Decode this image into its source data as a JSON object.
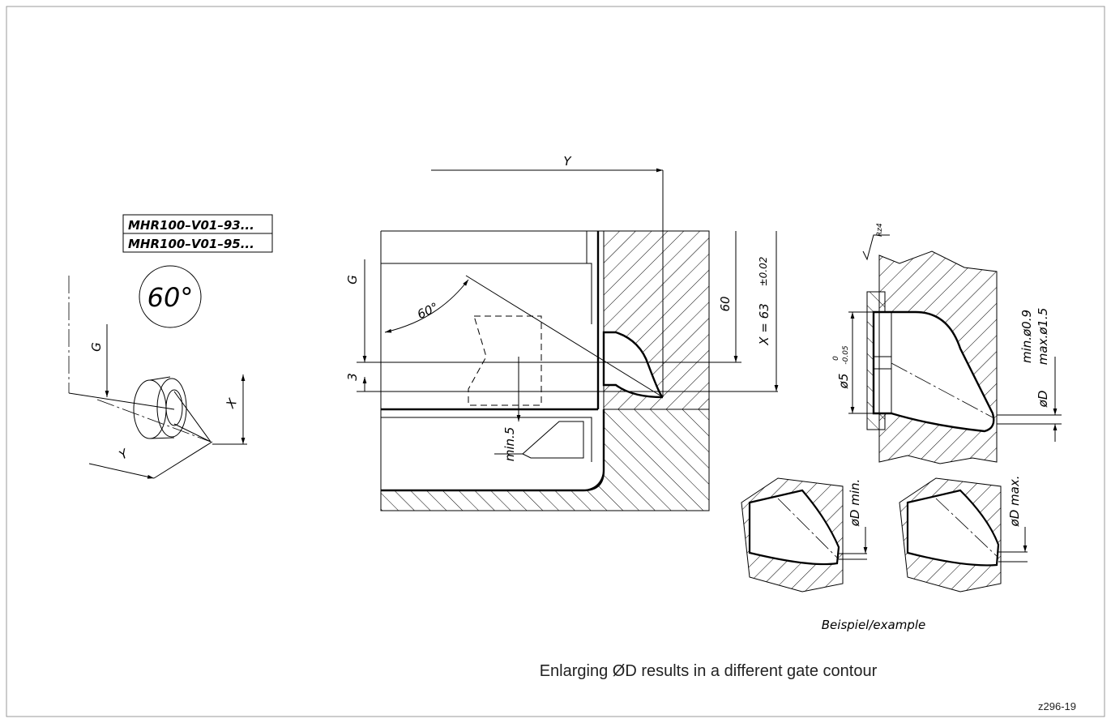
{
  "left_view": {
    "part_numbers": [
      "MHR100–V01–93...",
      "MHR100–V01–95..."
    ],
    "angle_badge": "60°",
    "label_g": "G",
    "label_x": "X",
    "label_y": "Y"
  },
  "section_view": {
    "label_y": "Y",
    "label_g": "G",
    "angle": "60°",
    "dim_3": "3",
    "dim_min5": "min.5",
    "dim_60": "60",
    "dim_x": "X = 63",
    "dim_x_tol": "±0.02"
  },
  "detail_view": {
    "roughness": "Rz4",
    "diameter": "ø5",
    "tol_upper": "0",
    "tol_lower": "-0.05",
    "min_d": "min.ø0.9",
    "max_d": "max.ø1.5",
    "od": "øD"
  },
  "examples": [
    "øD min.",
    "øD max."
  ],
  "example_caption": "Beispiel/example",
  "caption": "Enlarging ØD results in a different gate contour",
  "drawing_number": "z296-19"
}
